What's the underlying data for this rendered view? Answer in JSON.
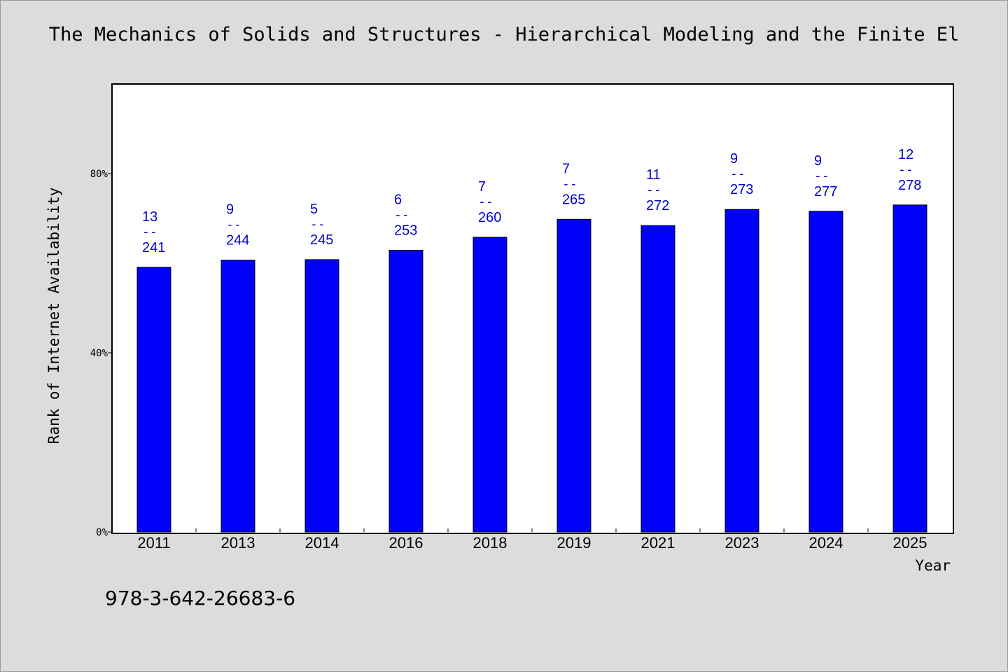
{
  "chart_data": {
    "type": "bar",
    "title": "The Mechanics of Solids and Structures - Hierarchical Modeling and the Finite El",
    "xlabel": "Year",
    "ylabel": "Rank of Internet Availability",
    "ylim": [
      0,
      100
    ],
    "yticks": [
      {
        "value": 0,
        "label": "0%"
      },
      {
        "value": 40,
        "label": "40%"
      },
      {
        "value": 80,
        "label": "80%"
      }
    ],
    "grid": false,
    "bar_color": "#0000ff",
    "label_color": "#0000cc",
    "categories": [
      "2011",
      "2013",
      "2014",
      "2016",
      "2018",
      "2019",
      "2021",
      "2023",
      "2024",
      "2025"
    ],
    "values": [
      59.1,
      60.7,
      60.8,
      62.9,
      65.8,
      69.8,
      68.4,
      72.0,
      71.6,
      73.0
    ],
    "data_labels": [
      {
        "top": "13",
        "sep": "--",
        "bottom": "241"
      },
      {
        "top": "9",
        "sep": "--",
        "bottom": "244"
      },
      {
        "top": "5",
        "sep": "--",
        "bottom": "245"
      },
      {
        "top": "6",
        "sep": "--",
        "bottom": "253"
      },
      {
        "top": "7",
        "sep": "--",
        "bottom": "260"
      },
      {
        "top": "7",
        "sep": "--",
        "bottom": "265"
      },
      {
        "top": "11",
        "sep": "--",
        "bottom": "272"
      },
      {
        "top": "9",
        "sep": "--",
        "bottom": "273"
      },
      {
        "top": "9",
        "sep": "--",
        "bottom": "277"
      },
      {
        "top": "12",
        "sep": "--",
        "bottom": "278"
      }
    ]
  },
  "footer": {
    "isbn": "978-3-642-26683-6"
  }
}
